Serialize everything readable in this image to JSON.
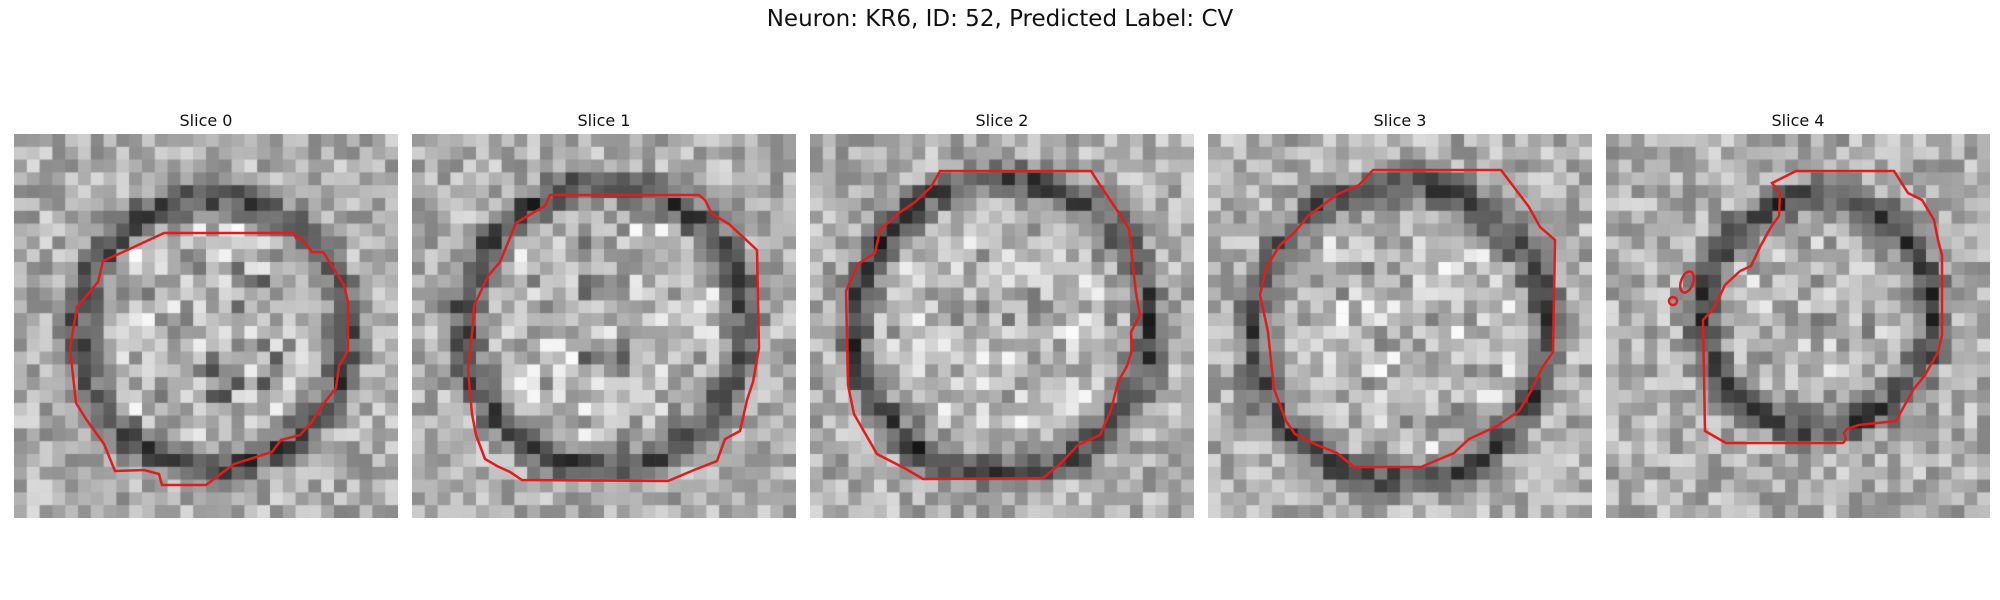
{
  "figure": {
    "title": "Neuron: KR6, ID: 52, Predicted Label: CV"
  },
  "colors": {
    "contour": "#e21c1c",
    "background": "#ffffff"
  },
  "panels": [
    {
      "title": "Slice 0",
      "seed": 11
    },
    {
      "title": "Slice 1",
      "seed": 23
    },
    {
      "title": "Slice 2",
      "seed": 37
    },
    {
      "title": "Slice 3",
      "seed": 41
    },
    {
      "title": "Slice 4",
      "seed": 59
    }
  ]
}
